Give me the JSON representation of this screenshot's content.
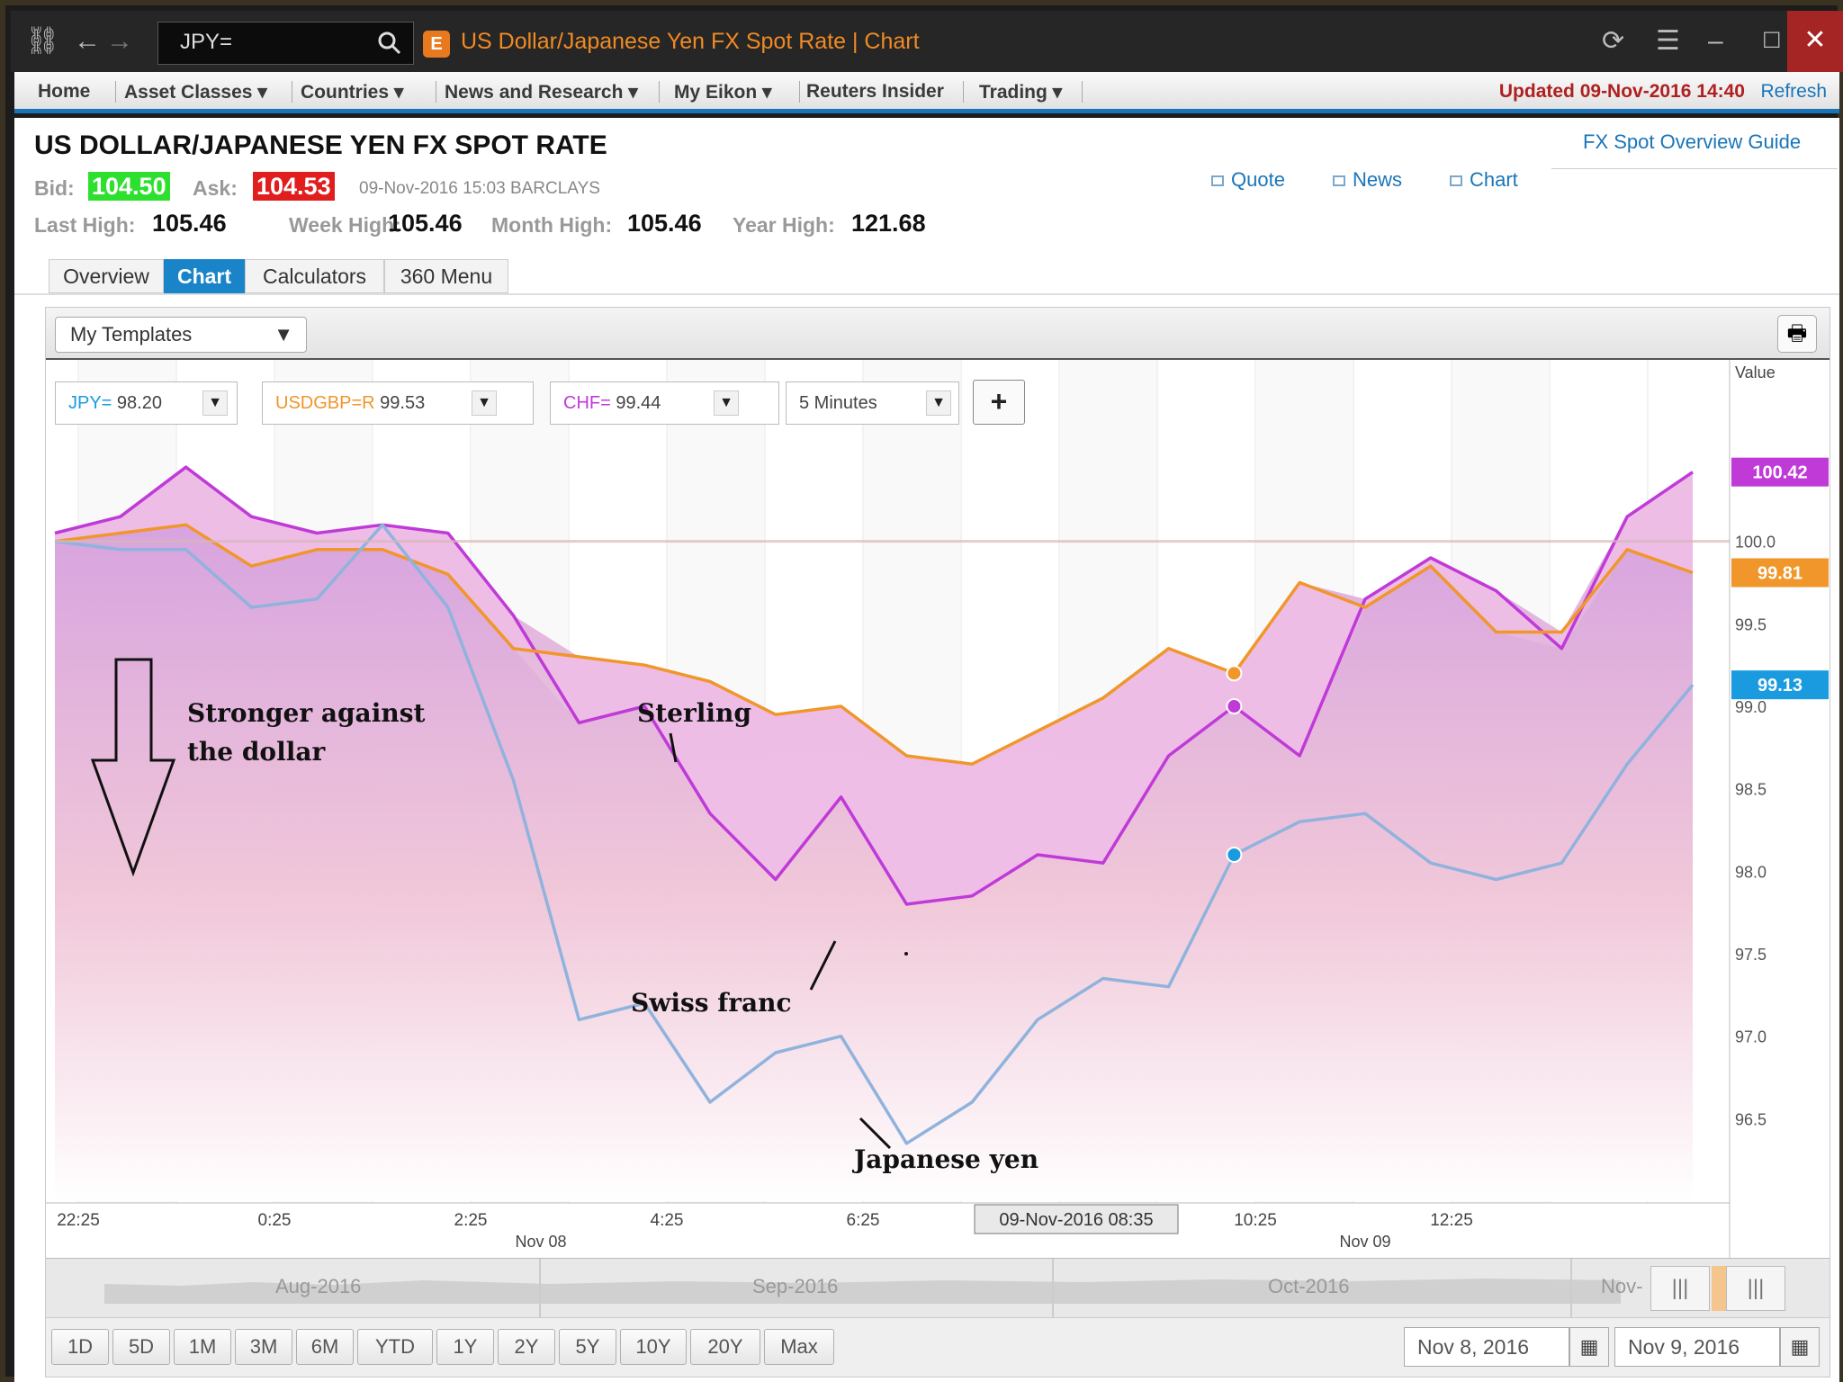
{
  "window": {
    "search_value": "JPY=",
    "title": "US Dollar/Japanese Yen FX Spot Rate | Chart",
    "close": "✕"
  },
  "nav": {
    "items": [
      "Home",
      "Asset Classes ▾",
      "Countries ▾",
      "News and Research ▾",
      "My Eikon ▾",
      "Reuters Insider",
      "Trading ▾"
    ],
    "updated": "Updated 09-Nov-2016 14:40",
    "refresh": "Refresh"
  },
  "quote": {
    "title": "US DOLLAR/JAPANESE YEN FX SPOT RATE",
    "bid_label": "Bid:",
    "bid": "104.50",
    "ask_label": "Ask:",
    "ask": "104.53",
    "time": "09-Nov-2016  15:03 BARCLAYS",
    "last_high_label": "Last High:",
    "last_high": "105.46",
    "week_high_label": "Week High:",
    "week_high": "105.46",
    "month_high_label": "Month High:",
    "month_high": "105.46",
    "year_high_label": "Year High:",
    "year_high": "121.68",
    "guide_link": "FX Spot Overview Guide",
    "links": [
      "Quote",
      "News",
      "Chart"
    ],
    "bid_color": "#2ee02e",
    "ask_color": "#e01e1e"
  },
  "tabs": [
    "Overview",
    "Chart",
    "Calculators",
    "360 Menu"
  ],
  "toolbar": {
    "templates": "My Templates"
  },
  "rics": [
    {
      "code": "JPY=",
      "value": "98.20",
      "color": "#1a9be0"
    },
    {
      "code": "USDGBP=R",
      "value": "99.53",
      "color": "#f0962a"
    },
    {
      "code": "CHF=",
      "value": "99.44",
      "color": "#c03ad8"
    }
  ],
  "interval": "5 Minutes",
  "add_series": "+",
  "chart_data": {
    "type": "line",
    "value_axis_label": "Value",
    "y_ticks": [
      96.5,
      97.0,
      97.5,
      98.0,
      98.5,
      99.0,
      99.5,
      100.0
    ],
    "y_tick_labels": [
      "96.5",
      "97.0",
      "97.5",
      "98.0",
      "98.5",
      "99.0",
      "99.5",
      "100.0"
    ],
    "x_tick_labels": [
      "22:25",
      "0:25",
      "2:25",
      "4:25",
      "6:25",
      "10:25",
      "12:25"
    ],
    "date_labels": [
      "Nov 08",
      "Nov 09"
    ],
    "crosshair_label": "09-Nov-2016 08:35",
    "last_values": [
      "100.42",
      "99.81",
      "99.13"
    ],
    "grid": true,
    "ylim": [
      96.0,
      100.8
    ],
    "x": [
      0,
      4,
      8,
      12,
      16,
      20,
      24,
      28,
      32,
      36,
      40,
      44,
      48,
      52,
      56,
      60,
      64,
      68,
      72,
      76,
      80,
      84,
      88,
      92,
      96,
      100
    ],
    "series": [
      {
        "name": "CHF=",
        "color": "#c03ad8",
        "values": [
          100.05,
          100.15,
          100.45,
          100.15,
          100.05,
          100.1,
          100.05,
          99.55,
          98.9,
          99.0,
          98.35,
          97.95,
          98.45,
          97.8,
          97.85,
          98.1,
          98.05,
          98.7,
          99.0,
          98.7,
          99.65,
          99.9,
          99.7,
          99.35,
          100.15,
          100.42
        ]
      },
      {
        "name": "USDGBP=R",
        "color": "#f0962a",
        "values": [
          100.0,
          100.05,
          100.1,
          99.85,
          99.95,
          99.95,
          99.8,
          99.35,
          99.3,
          99.25,
          99.15,
          98.95,
          99.0,
          98.7,
          98.65,
          98.85,
          99.05,
          99.35,
          99.2,
          99.75,
          99.6,
          99.85,
          99.45,
          99.45,
          99.95,
          99.81
        ]
      },
      {
        "name": "JPY=",
        "color": "#8fb3dd",
        "values": [
          100.0,
          99.95,
          99.95,
          99.6,
          99.65,
          100.1,
          99.6,
          98.55,
          97.1,
          97.2,
          96.6,
          96.9,
          97.0,
          96.35,
          96.6,
          97.1,
          97.35,
          97.3,
          98.1,
          98.3,
          98.35,
          98.05,
          97.95,
          98.05,
          98.65,
          99.13
        ]
      }
    ]
  },
  "annotations": {
    "stronger": [
      "Stronger against",
      "the dollar"
    ],
    "sterling": "Sterling",
    "swiss": "Swiss franc",
    "yen": "Japanese yen"
  },
  "navigator": {
    "months": [
      "Aug-2016",
      "Sep-2016",
      "Oct-2016",
      "Nov-"
    ],
    "handle": "|||"
  },
  "range_buttons": [
    "1D",
    "5D",
    "1M",
    "3M",
    "6M",
    "YTD",
    "1Y",
    "2Y",
    "5Y",
    "10Y",
    "20Y",
    "Max"
  ],
  "date_from": "Nov 8, 2016",
  "date_to": "Nov 9, 2016"
}
